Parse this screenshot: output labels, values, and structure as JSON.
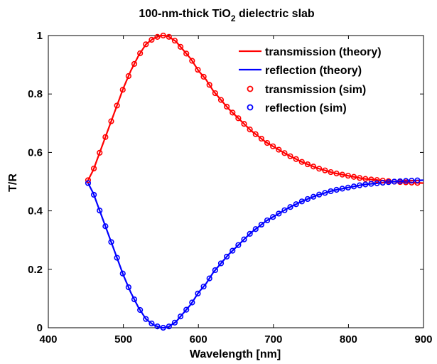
{
  "chart_data": {
    "type": "line",
    "title": {
      "main": "100-nm-thick TiO",
      "sub": "2",
      "rest": " dielectric slab"
    },
    "xlabel": "Wavelength [nm]",
    "ylabel": "T/R",
    "xlim": [
      400,
      900
    ],
    "ylim": [
      0,
      1
    ],
    "xticks": [
      "400",
      "500",
      "600",
      "700",
      "800",
      "900"
    ],
    "yticks": [
      "0",
      "0.2",
      "0.4",
      "0.6",
      "0.8",
      "1"
    ],
    "legend_position": "top-right",
    "series": [
      {
        "name": "transmission (theory)",
        "style": "line",
        "color": "#ff0000",
        "x": [
          452,
          460,
          470,
          480,
          490,
          500,
          510,
          520,
          530,
          540,
          550,
          555,
          560,
          570,
          580,
          590,
          600,
          610,
          620,
          630,
          640,
          650,
          660,
          670,
          680,
          690,
          700,
          720,
          740,
          760,
          780,
          800,
          820,
          840,
          860,
          880,
          900
        ],
        "y": [
          0.5,
          0.54,
          0.61,
          0.68,
          0.75,
          0.82,
          0.88,
          0.93,
          0.97,
          0.99,
          1.0,
          1.0,
          0.997,
          0.98,
          0.95,
          0.92,
          0.88,
          0.85,
          0.81,
          0.78,
          0.75,
          0.725,
          0.7,
          0.675,
          0.655,
          0.635,
          0.62,
          0.59,
          0.565,
          0.545,
          0.53,
          0.52,
          0.51,
          0.505,
          0.5,
          0.497,
          0.495
        ]
      },
      {
        "name": "reflection (theory)",
        "style": "line",
        "color": "#0000ff",
        "x": [
          452,
          460,
          470,
          480,
          490,
          500,
          510,
          520,
          530,
          540,
          550,
          555,
          560,
          570,
          580,
          590,
          600,
          610,
          620,
          630,
          640,
          650,
          660,
          670,
          680,
          690,
          700,
          720,
          740,
          760,
          780,
          800,
          820,
          840,
          860,
          880,
          900
        ],
        "y": [
          0.5,
          0.46,
          0.39,
          0.32,
          0.25,
          0.18,
          0.12,
          0.07,
          0.03,
          0.01,
          0.0,
          0.0,
          0.003,
          0.02,
          0.05,
          0.08,
          0.12,
          0.15,
          0.19,
          0.22,
          0.25,
          0.275,
          0.3,
          0.325,
          0.345,
          0.365,
          0.38,
          0.41,
          0.435,
          0.455,
          0.47,
          0.48,
          0.49,
          0.495,
          0.5,
          0.503,
          0.505
        ]
      },
      {
        "name": "transmission (sim)",
        "style": "markers",
        "color": "#ff0000"
      },
      {
        "name": "reflection (sim)",
        "style": "markers",
        "color": "#0000ff"
      }
    ]
  }
}
